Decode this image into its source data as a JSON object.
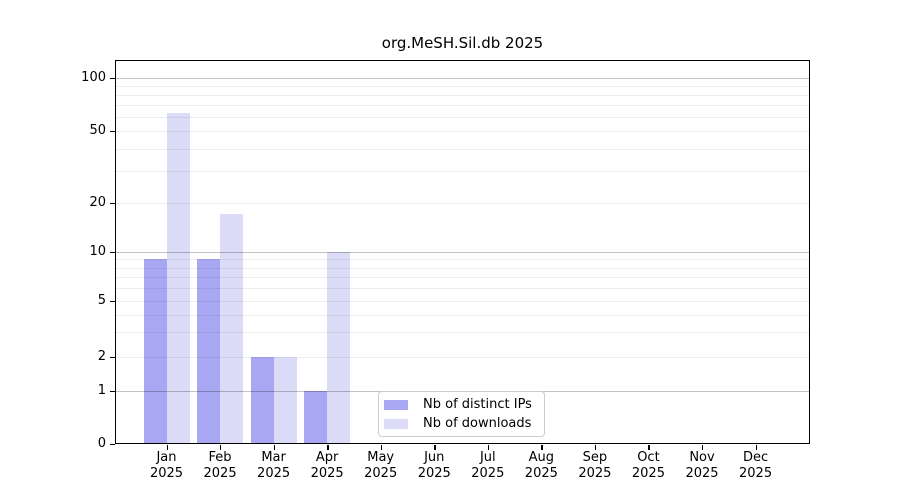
{
  "chart_data": {
    "type": "bar",
    "title": "org.MeSH.Sil.db 2025",
    "categories": [
      "Jan 2025",
      "Feb 2025",
      "Mar 2025",
      "Apr 2025",
      "May 2025",
      "Jun 2025",
      "Jul 2025",
      "Aug 2025",
      "Sep 2025",
      "Oct 2025",
      "Nov 2025",
      "Dec 2025"
    ],
    "series": [
      {
        "name": "Nb of distinct IPs",
        "color": "#a8a8f2",
        "values": [
          9,
          9,
          2,
          1,
          0,
          0,
          0,
          0,
          0,
          0,
          0,
          0
        ]
      },
      {
        "name": "Nb of downloads",
        "color": "#dcdcf8",
        "values": [
          63,
          17,
          2,
          10,
          0,
          0,
          0,
          0,
          0,
          0,
          0,
          0
        ]
      }
    ],
    "yscale": "log",
    "yticks": [
      0,
      1,
      2,
      5,
      10,
      20,
      50,
      100
    ],
    "ylim": [
      0,
      130
    ],
    "grid": "both",
    "legend_position": "lower-center",
    "xlabel": "",
    "ylabel": ""
  }
}
